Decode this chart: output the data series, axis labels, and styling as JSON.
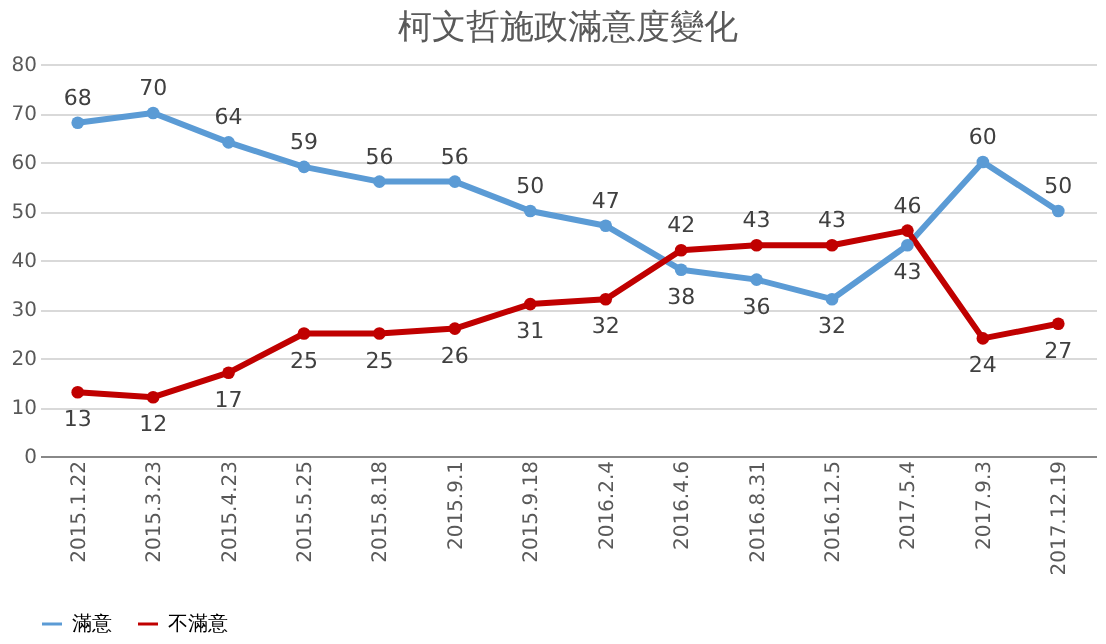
{
  "chart_data": {
    "type": "line",
    "title": "柯文哲施政滿意度變化",
    "categories": [
      "2015.1.22",
      "2015.3.23",
      "2015.4.23",
      "2015.5.25",
      "2015.8.18",
      "2015.9.1",
      "2015.9.18",
      "2016.2.4",
      "2016.4.6",
      "2016.8.31",
      "2016.12.5",
      "2017.5.4",
      "2017.9.3",
      "2017.12.19"
    ],
    "series": [
      {
        "name": "滿意",
        "color": "#5b9bd5",
        "values": [
          68,
          70,
          64,
          59,
          56,
          56,
          50,
          47,
          38,
          36,
          32,
          43,
          60,
          50
        ]
      },
      {
        "name": "不滿意",
        "color": "#c00000",
        "values": [
          13,
          12,
          17,
          25,
          25,
          26,
          31,
          32,
          42,
          43,
          43,
          46,
          24,
          27
        ]
      }
    ],
    "ylim": [
      0,
      80
    ],
    "yticks": [
      0,
      10,
      20,
      30,
      40,
      50,
      60,
      70,
      80
    ],
    "grid": "y",
    "legend": "bottom",
    "marker": "circle",
    "line_style": "solid",
    "data_labels": true
  }
}
